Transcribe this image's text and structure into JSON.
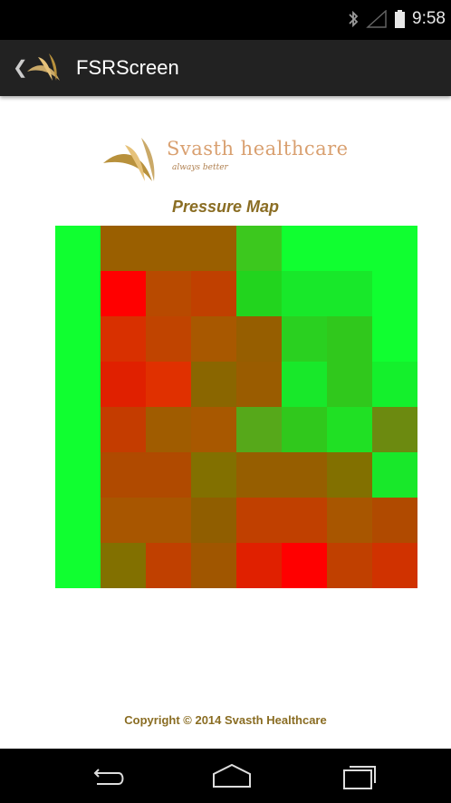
{
  "status_bar": {
    "time": "9:58",
    "icons": [
      "bluetooth-icon",
      "signal-icon",
      "battery-icon"
    ]
  },
  "app_bar": {
    "title": "FSRScreen",
    "icons": [
      "back-chevron-icon",
      "app-logo-icon"
    ]
  },
  "brand": {
    "name": "Svasth healthcare",
    "tagline": "always better"
  },
  "pressure_map": {
    "title": "Pressure Map",
    "rows": 8,
    "cols": 8,
    "cells": [
      [
        "#10ff30",
        "#9a5f00",
        "#9a5f00",
        "#9a5f00",
        "#3cc81e",
        "#10ff30",
        "#10ff30",
        "#10ff30"
      ],
      [
        "#10ff30",
        "#ff0000",
        "#b84a00",
        "#c04000",
        "#22d41e",
        "#18e82a",
        "#18e82a",
        "#10ff30"
      ],
      [
        "#10ff30",
        "#d83000",
        "#c04400",
        "#a85800",
        "#965e00",
        "#2ad020",
        "#30c81c",
        "#10ff30"
      ],
      [
        "#10ff30",
        "#e02000",
        "#e03000",
        "#8a6600",
        "#9a5c00",
        "#18e82a",
        "#30c81c",
        "#14f02c"
      ],
      [
        "#10ff30",
        "#c43c00",
        "#a05c00",
        "#a85800",
        "#56a81a",
        "#30c81c",
        "#20e024",
        "#6c8a10"
      ],
      [
        "#10ff30",
        "#b04a00",
        "#b04a00",
        "#827000",
        "#965e00",
        "#965e00",
        "#827000",
        "#18e82a"
      ],
      [
        "#10ff30",
        "#a85600",
        "#a85600",
        "#905e00",
        "#c04000",
        "#c04000",
        "#a85600",
        "#b04a00"
      ],
      [
        "#10ff30",
        "#827000",
        "#c04000",
        "#a05600",
        "#e02000",
        "#ff0000",
        "#c04000",
        "#d03200"
      ]
    ]
  },
  "footer": {
    "copyright": "Copyright © 2014 Svasth Healthcare"
  },
  "nav_bar": {
    "buttons": [
      "back-nav-icon",
      "home-icon",
      "recents-icon"
    ]
  }
}
